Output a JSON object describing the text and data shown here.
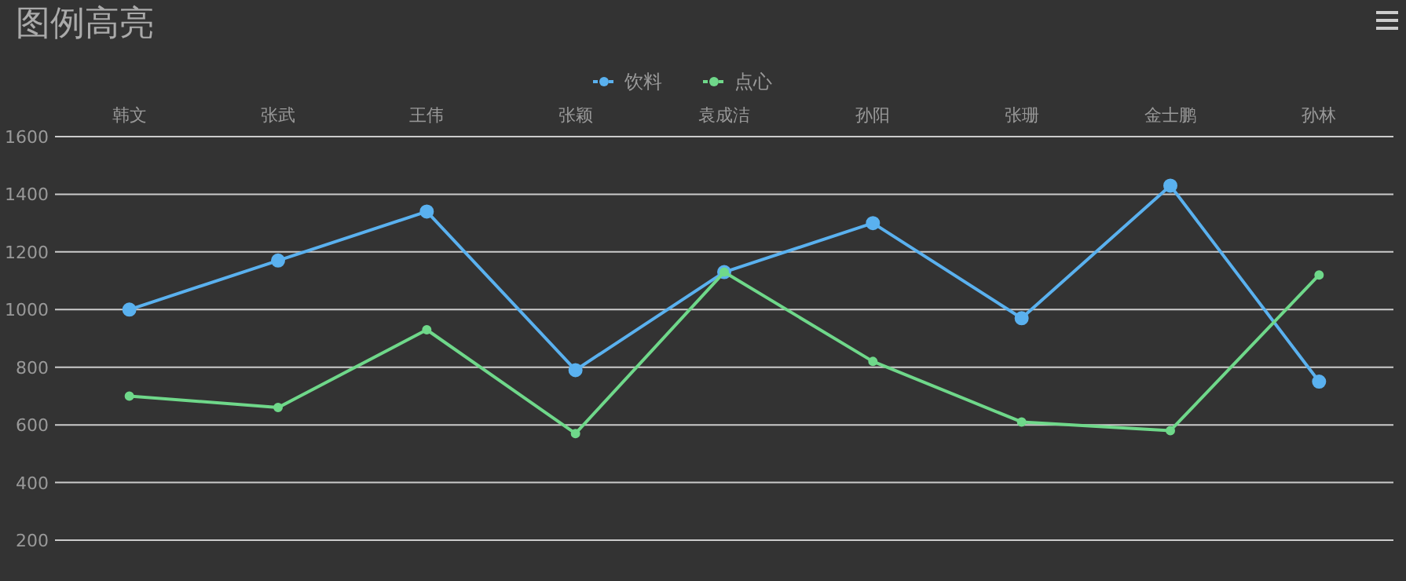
{
  "chart_data": {
    "type": "line",
    "title": "图例高亮",
    "categories": [
      "韩文",
      "张武",
      "王伟",
      "张颖",
      "袁成洁",
      "孙阳",
      "张珊",
      "金士鹏",
      "孙林"
    ],
    "series": [
      {
        "name": "饮料",
        "color": "#5ab1ef",
        "values": [
          1000,
          1170,
          1340,
          790,
          1130,
          1300,
          970,
          1430,
          750
        ]
      },
      {
        "name": "点心",
        "color": "#6fd88a",
        "values": [
          700,
          660,
          930,
          570,
          1130,
          820,
          610,
          580,
          1120
        ]
      }
    ],
    "ylim": [
      200,
      1600
    ],
    "yticks": [
      200,
      400,
      600,
      800,
      1000,
      1200,
      1400,
      1600
    ],
    "grid": "y",
    "legend": "top",
    "marker": "circle",
    "line_style": "solid"
  }
}
